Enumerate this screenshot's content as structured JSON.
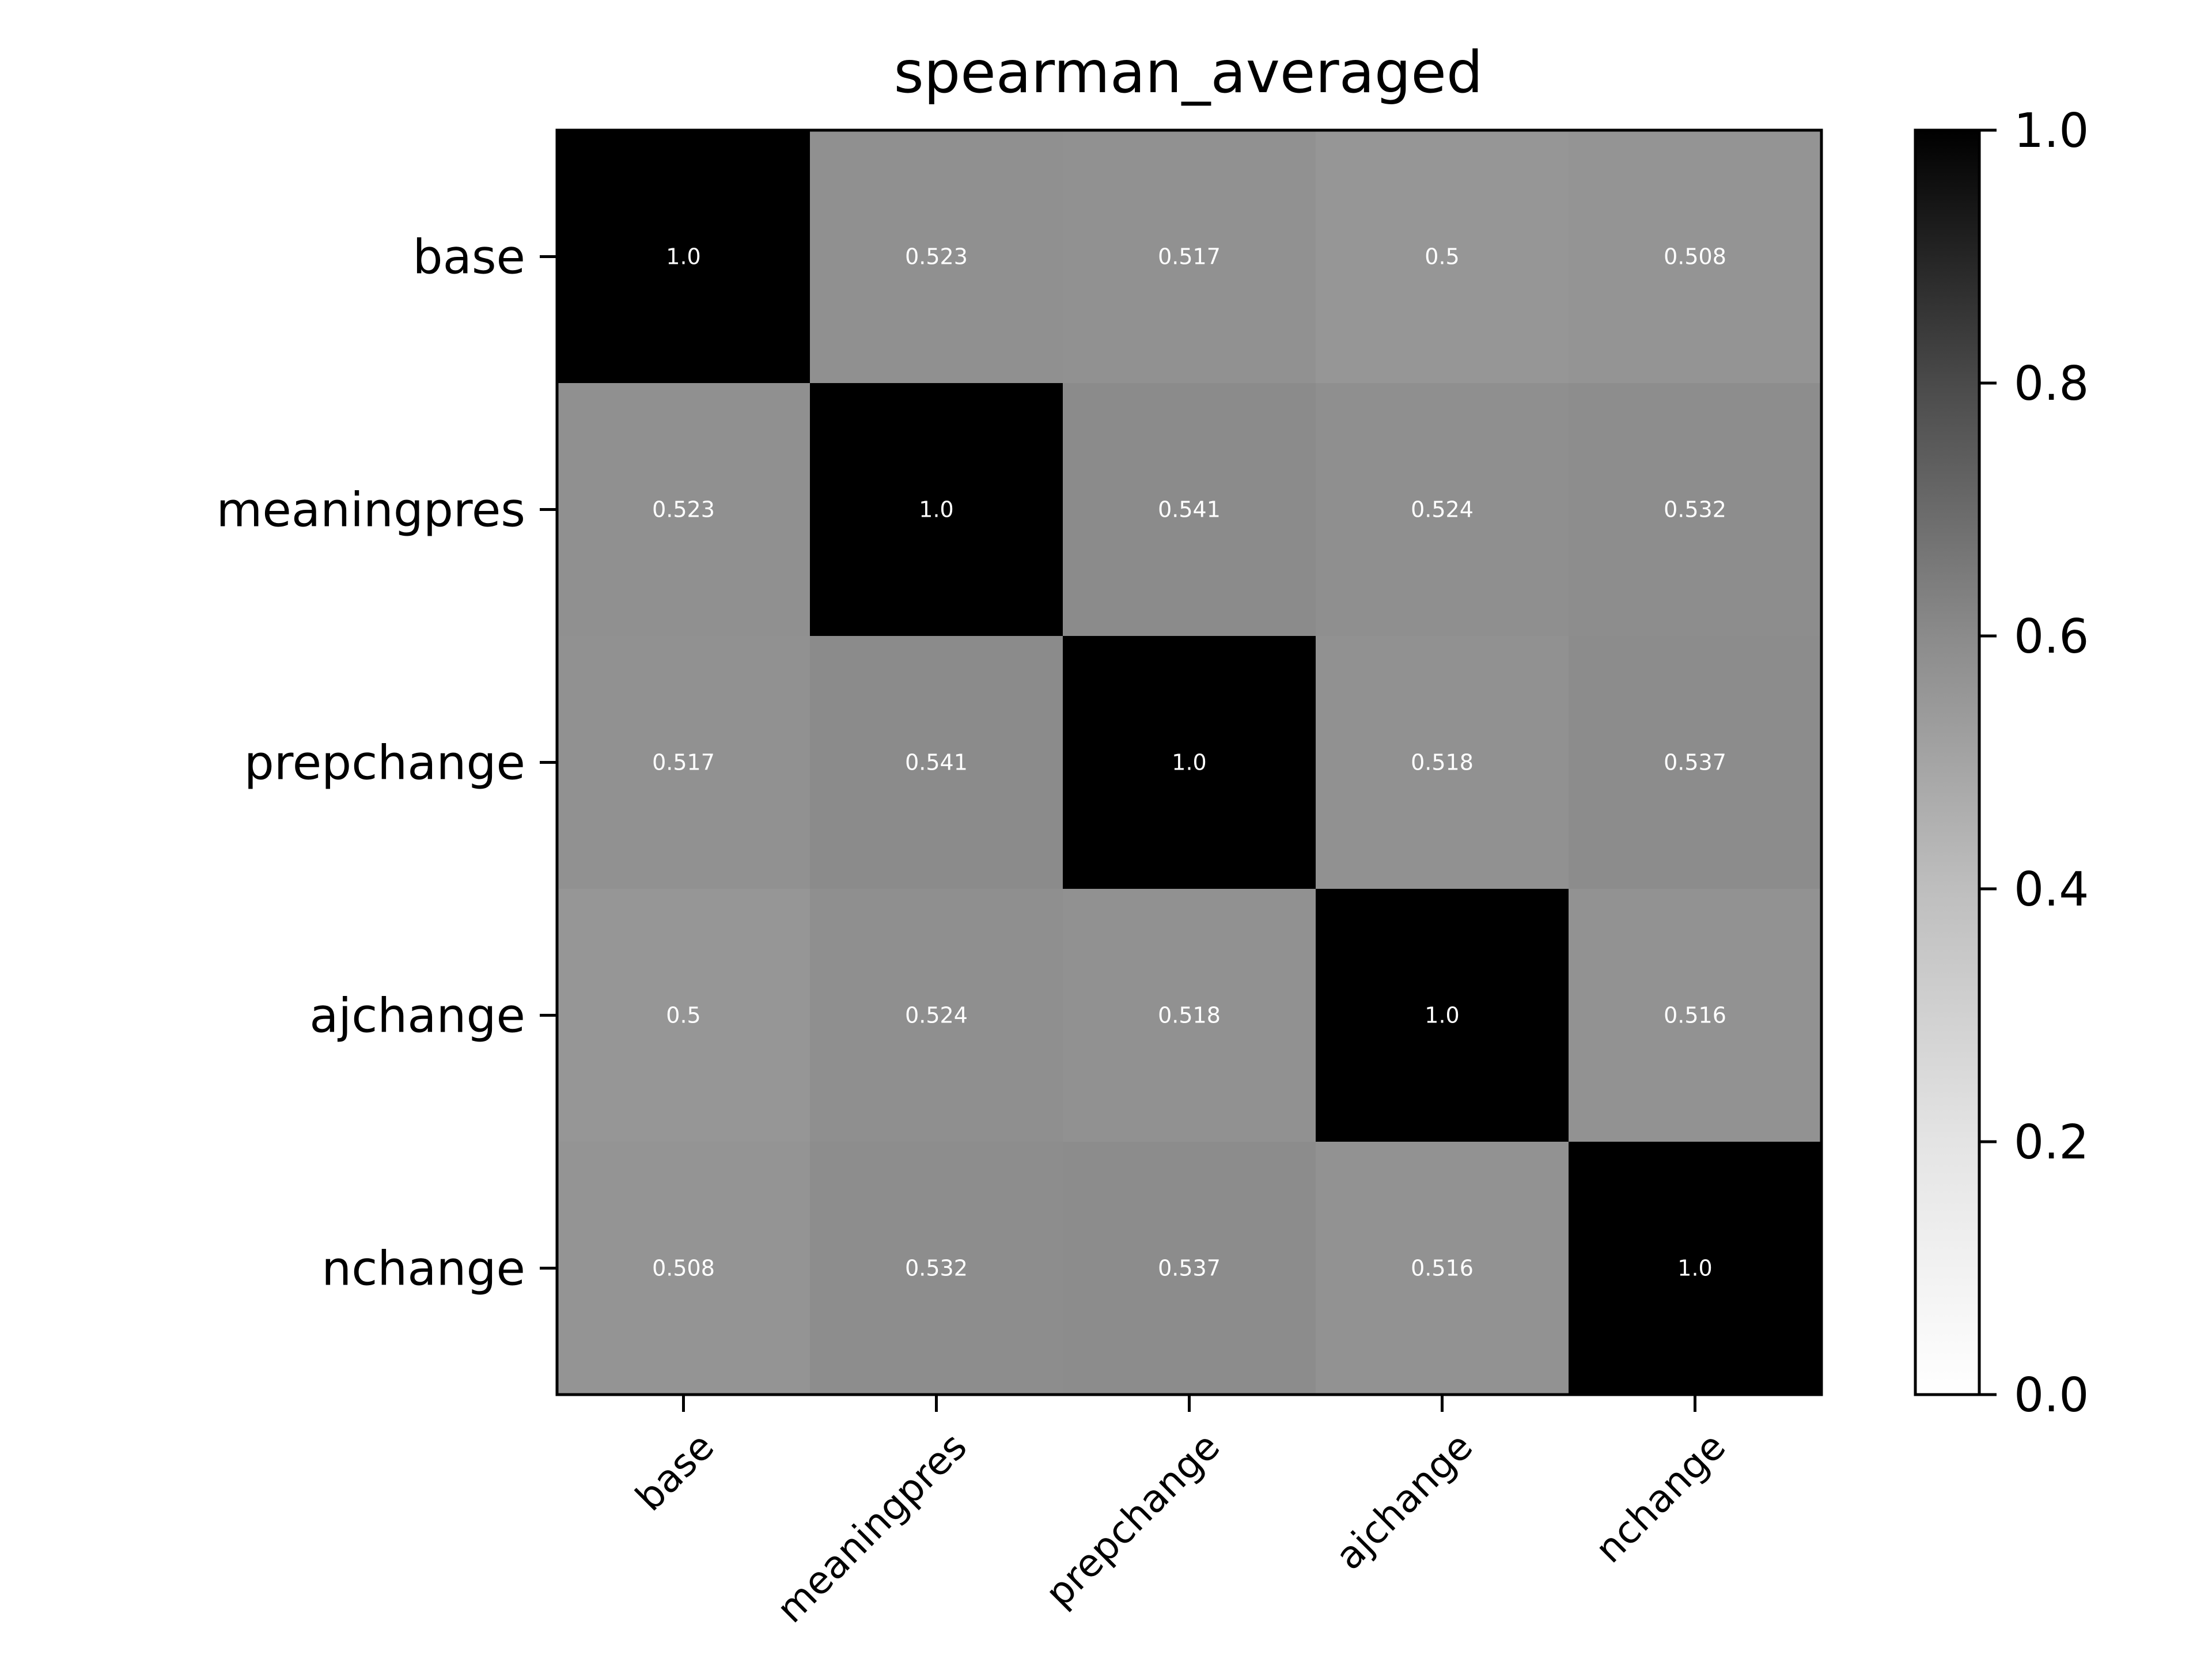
{
  "chart_data": {
    "type": "heatmap",
    "title": "spearman_averaged",
    "xlabel": "",
    "ylabel": "",
    "row_labels": [
      "base",
      "meaningpres",
      "prepchange",
      "ajchange",
      "nchange"
    ],
    "col_labels": [
      "base",
      "meaningpres",
      "prepchange",
      "ajchange",
      "nchange"
    ],
    "values": [
      [
        1.0,
        0.523,
        0.517,
        0.5,
        0.508
      ],
      [
        0.523,
        1.0,
        0.541,
        0.524,
        0.532
      ],
      [
        0.517,
        0.541,
        1.0,
        0.518,
        0.537
      ],
      [
        0.5,
        0.524,
        0.518,
        1.0,
        0.516
      ],
      [
        0.508,
        0.532,
        0.537,
        0.516,
        1.0
      ]
    ],
    "cell_text": [
      [
        "1.0",
        "0.523",
        "0.517",
        "0.5",
        "0.508"
      ],
      [
        "0.523",
        "1.0",
        "0.541",
        "0.524",
        "0.532"
      ],
      [
        "0.517",
        "0.541",
        "1.0",
        "0.518",
        "0.537"
      ],
      [
        "0.5",
        "0.524",
        "0.518",
        "1.0",
        "0.516"
      ],
      [
        "0.508",
        "0.532",
        "0.537",
        "0.516",
        "1.0"
      ]
    ],
    "colormap": "Greys",
    "vmin": 0.0,
    "vmax": 1.0,
    "colorbar": {
      "ticks": [
        0.0,
        0.2,
        0.4,
        0.6,
        0.8,
        1.0
      ],
      "tick_labels": [
        "0.0",
        "0.2",
        "0.4",
        "0.6",
        "0.8",
        "1.0"
      ]
    },
    "text_color": "#ffffff"
  }
}
